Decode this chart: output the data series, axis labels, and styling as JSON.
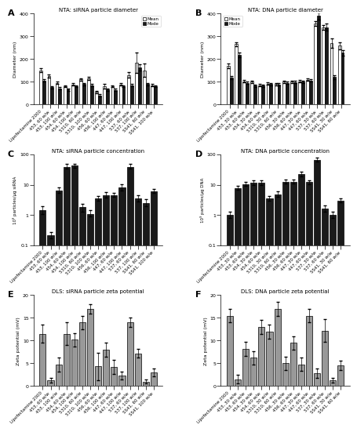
{
  "labels_AB": [
    "Lipofectamine 2000",
    "453, 60 w/w",
    "453, 100 w/w",
    "454, 60 w/w",
    "454, 100 w/w",
    "5310, 60 w/w",
    "5310, 100 w/w",
    "456, 60 w/w",
    "456, 100 w/w",
    "447, 60 w/w",
    "447, 100 w/w",
    "537, 60 w/w",
    "537, 100 w/w",
    "SS41, 60 w/w",
    "SS41, 100 w/w"
  ],
  "labels_AB_B": [
    "Lipofectamine 2000",
    "453, 30 w/w",
    "453, 60 w/w",
    "454, 30 w/w",
    "454, 60 w/w",
    "5310, 30 w/w",
    "5310, 60 w/w",
    "456, 30 w/w",
    "456, 60 w/w",
    "447, 30 w/w",
    "447, 60 w/w",
    "537, 30 w/w",
    "537, 60 w/w",
    "SS41, 30 w/w",
    "SS41, 60 w/w"
  ],
  "labels_CD": [
    "Lipofectamine 2000",
    "453, 60 w/w",
    "453, 100 w/w",
    "454, 60 w/w",
    "454, 100 w/w",
    "5310, 60 w/w",
    "5310, 100 w/w",
    "456, 60 w/w",
    "456, 100 w/w",
    "447, 60 w/w",
    "447, 100 w/w",
    "537, 60 w/w",
    "537, 100 w/w",
    "SS41, 60 w/w",
    "SS41, 100 w/w"
  ],
  "labels_D": [
    "Lipofectamine 2000",
    "453, 30 w/w",
    "453, 60 w/w",
    "454, 30 w/w",
    "454, 60 w/w",
    "5310, 30 w/w",
    "5310, 60 w/w",
    "456, 30 w/w",
    "456, 60 w/w",
    "447, 30 w/w",
    "447, 60 w/w",
    "537, 30 w/w",
    "537, 60 w/w",
    "SS41, 30 w/w",
    "SS41, 60 w/w"
  ],
  "labels_F": [
    "Lipofectamine 2000",
    "453, 30 w/w",
    "453, 60 w/w",
    "454, 30 w/w",
    "454, 60 w/w",
    "5310, 30 w/w",
    "5310, 60 w/w",
    "456, 30 w/w",
    "456, 60 w/w",
    "447, 30 w/w",
    "447, 60 w/w",
    "537, 30 w/w",
    "537, 60 w/w",
    "SS41, 30 w/w",
    "SS41, 60 w/w"
  ],
  "A_mean": [
    150,
    125,
    95,
    80,
    88,
    110,
    115,
    55,
    80,
    80,
    88,
    130,
    185,
    150,
    85
  ],
  "A_mean_err": [
    8,
    8,
    5,
    5,
    5,
    5,
    8,
    5,
    10,
    5,
    5,
    12,
    45,
    30,
    5
  ],
  "A_mode": [
    105,
    75,
    70,
    65,
    80,
    90,
    85,
    40,
    65,
    63,
    80,
    85,
    163,
    90,
    80
  ],
  "A_mode_err": [
    5,
    5,
    5,
    5,
    5,
    5,
    5,
    5,
    5,
    5,
    5,
    5,
    15,
    5,
    5
  ],
  "B_mean": [
    170,
    265,
    102,
    100,
    85,
    92,
    90,
    100,
    100,
    102,
    108,
    355,
    340,
    270,
    258
  ],
  "B_mean_err": [
    10,
    10,
    5,
    5,
    5,
    5,
    5,
    5,
    5,
    5,
    5,
    10,
    10,
    20,
    15
  ],
  "B_mode": [
    118,
    218,
    95,
    82,
    82,
    90,
    88,
    95,
    98,
    100,
    105,
    390,
    340,
    120,
    228
  ],
  "B_mode_err": [
    8,
    10,
    5,
    5,
    5,
    5,
    5,
    5,
    5,
    5,
    5,
    15,
    15,
    10,
    12
  ],
  "C_vals": [
    1.4,
    0.22,
    6.5,
    38,
    42,
    1.8,
    1.1,
    3.5,
    4.5,
    4.5,
    8.0,
    38,
    3.5,
    2.5,
    6.0
  ],
  "C_err_lo": [
    0.3,
    0.05,
    1.0,
    5,
    5,
    0.5,
    0.2,
    0.5,
    0.8,
    0.5,
    1.5,
    5,
    0.8,
    0.5,
    0.8
  ],
  "C_err_hi": [
    0.5,
    0.05,
    1.5,
    10,
    8,
    0.5,
    0.3,
    0.8,
    1.2,
    1.0,
    2.5,
    10,
    1.0,
    0.8,
    1.0
  ],
  "D_vals": [
    1.0,
    7.5,
    10.5,
    11.5,
    11.5,
    3.5,
    4.8,
    12.5,
    12.5,
    22.0,
    12.0,
    65.0,
    1.6,
    1.0,
    3.0
  ],
  "D_err_lo": [
    0.2,
    0.8,
    1.5,
    1.5,
    1.5,
    0.5,
    0.8,
    1.5,
    1.5,
    3.0,
    1.5,
    8.0,
    0.3,
    0.2,
    0.4
  ],
  "D_err_hi": [
    0.3,
    1.5,
    2.0,
    2.0,
    2.0,
    0.8,
    1.2,
    2.0,
    2.0,
    5.0,
    2.0,
    15.0,
    0.5,
    0.3,
    0.6
  ],
  "E_vals": [
    11.5,
    1.2,
    4.7,
    11.5,
    10.2,
    14.0,
    17.0,
    4.3,
    8.0,
    4.2,
    2.3,
    14.0,
    7.2,
    1.0,
    3.0
  ],
  "E_err": [
    2.0,
    0.5,
    1.5,
    2.5,
    1.5,
    1.5,
    1.0,
    3.0,
    1.5,
    1.5,
    0.8,
    1.0,
    1.0,
    0.5,
    0.8
  ],
  "F_vals": [
    15.5,
    1.5,
    8.2,
    6.2,
    13.0,
    12.0,
    17.0,
    5.0,
    9.5,
    4.8,
    15.5,
    2.8,
    12.2,
    1.3,
    4.5
  ],
  "F_err": [
    1.5,
    1.0,
    1.5,
    1.5,
    1.5,
    1.5,
    1.5,
    1.5,
    1.5,
    1.5,
    1.5,
    1.0,
    2.5,
    0.5,
    1.0
  ],
  "bar_color_white": "#ffffff",
  "bar_color_black": "#1a1a1a",
  "bar_color_gray": "#999999",
  "edge_color": "#000000",
  "title_A": "NTA: siRNA particle diameter",
  "title_B": "NTA: DNA particle diameter",
  "title_C": "NTA: siRNA particle concentration",
  "title_D": "NTA: DNA particle concentration",
  "title_E": "DLS: siRNA particle zeta potential",
  "title_F": "DLS: DNA particle zeta potential",
  "ylabel_AB": "Diameter (nm)",
  "ylabel_C": "10⁹ particles/µg siRNA",
  "ylabel_D": "10⁹ particles/µg DNA",
  "ylabel_EF": "Zeta potential (mV)"
}
